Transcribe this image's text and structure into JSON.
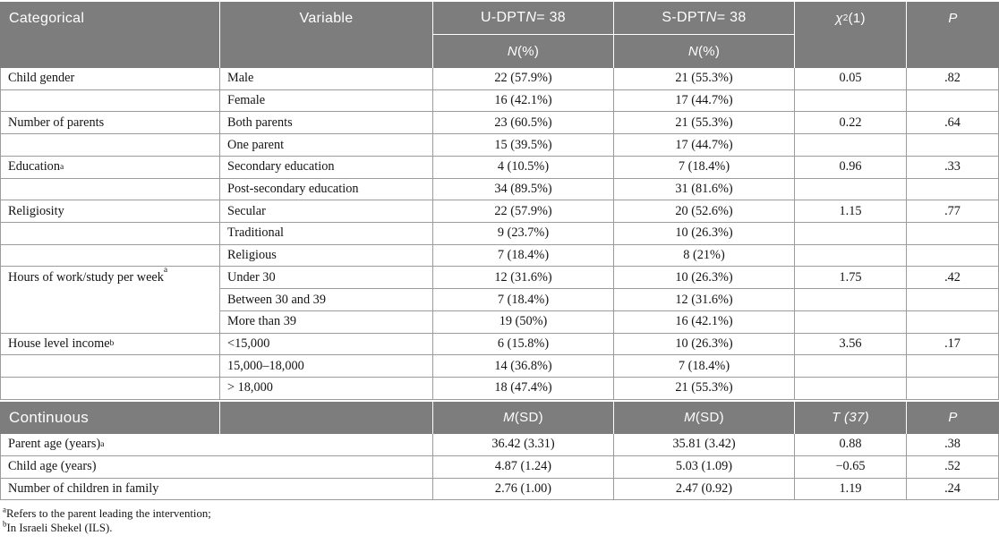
{
  "colors": {
    "header_bg": "#7d7d7d",
    "header_text": "#ffffff",
    "border": "#9c9c9c",
    "body_text": "#141414"
  },
  "header": {
    "categorical": "Categorical",
    "variable": "Variable",
    "udpt": {
      "prefix": "U-DPT ",
      "n": "N",
      "rest": " = 38"
    },
    "sdpt": {
      "prefix": "S-DPT ",
      "n": "N",
      "rest": " = 38"
    },
    "npct": {
      "n": "N",
      "rest": " (%)"
    },
    "chi": {
      "sym": "χ",
      "sup": "2",
      "rest": " (1)"
    },
    "p": "P"
  },
  "categorical_rows": [
    {
      "category": "Child gender",
      "variable": "Male",
      "udpt": "22 (57.9%)",
      "sdpt": "21 (55.3%)",
      "chi": "0.05",
      "p": ".82"
    },
    {
      "category": "",
      "variable": "Female",
      "udpt": "16 (42.1%)",
      "sdpt": "17 (44.7%)",
      "chi": "",
      "p": ""
    },
    {
      "category": "Number of parents",
      "variable": "Both parents",
      "udpt": "23 (60.5%)",
      "sdpt": "21 (55.3%)",
      "chi": "0.22",
      "p": ".64"
    },
    {
      "category": "",
      "variable": "One parent",
      "udpt": "15 (39.5%)",
      "sdpt": "17 (44.7%)",
      "chi": "",
      "p": ""
    },
    {
      "category": "Education",
      "category_sup": "a",
      "variable": "Secondary education",
      "udpt": "4 (10.5%)",
      "sdpt": "7 (18.4%)",
      "chi": "0.96",
      "p": ".33"
    },
    {
      "category": "",
      "variable": "Post-secondary education",
      "udpt": "34 (89.5%)",
      "sdpt": "31 (81.6%)",
      "chi": "",
      "p": ""
    },
    {
      "category": "Religiosity",
      "variable": "Secular",
      "udpt": "22 (57.9%)",
      "sdpt": "20 (52.6%)",
      "chi": "1.15",
      "p": ".77"
    },
    {
      "category": "",
      "variable": "Traditional",
      "udpt": "9 (23.7%)",
      "sdpt": "10 (26.3%)",
      "chi": "",
      "p": ""
    },
    {
      "category": "",
      "variable": "Religious",
      "udpt": "7 (18.4%)",
      "sdpt": "8 (21%)",
      "chi": "",
      "p": ""
    },
    {
      "category": "Hours of work/study per week",
      "category_sup": "a",
      "rowspan": 3,
      "variable": "Under 30",
      "udpt": "12 (31.6%)",
      "sdpt": "10 (26.3%)",
      "chi": "1.75",
      "p": ".42"
    },
    {
      "category": null,
      "variable": "Between 30 and 39",
      "udpt": "7 (18.4%)",
      "sdpt": "12 (31.6%)",
      "chi": "",
      "p": ""
    },
    {
      "category": null,
      "variable": "More than 39",
      "udpt": "19 (50%)",
      "sdpt": "16 (42.1%)",
      "chi": "",
      "p": ""
    },
    {
      "category": "House level income",
      "category_sup": "b",
      "variable": "<15,000",
      "udpt": "6 (15.8%)",
      "sdpt": "10 (26.3%)",
      "chi": "3.56",
      "p": ".17"
    },
    {
      "category": "",
      "variable": "15,000–18,000",
      "udpt": "14 (36.8%)",
      "sdpt": "7 (18.4%)",
      "chi": "",
      "p": ""
    },
    {
      "category": "",
      "variable": "> 18,000",
      "udpt": "18 (47.4%)",
      "sdpt": "21 (55.3%)",
      "chi": "",
      "p": ""
    }
  ],
  "continuous_header": {
    "label": "Continuous",
    "msd": {
      "m": "M",
      "rest": " (SD)"
    },
    "t": "T (37)",
    "p": "P"
  },
  "continuous_rows": [
    {
      "label": "Parent age (years)",
      "sup": "a",
      "udpt": "36.42 (3.31)",
      "sdpt": "35.81 (3.42)",
      "t": "0.88",
      "p": ".38"
    },
    {
      "label": "Child age (years)",
      "udpt": "4.87 (1.24)",
      "sdpt": "5.03 (1.09)",
      "t": "−0.65",
      "p": ".52"
    },
    {
      "label": "Number of children in family",
      "udpt": "2.76 (1.00)",
      "sdpt": "2.47 (0.92)",
      "t": "1.19",
      "p": ".24"
    }
  ],
  "footnotes": [
    {
      "sup": "a",
      "text": "Refers to the parent leading the intervention;"
    },
    {
      "sup": "b",
      "text": "In Israeli Shekel (ILS)."
    }
  ]
}
